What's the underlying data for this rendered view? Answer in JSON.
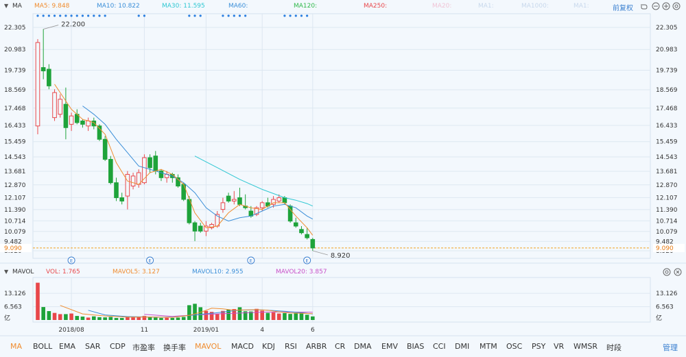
{
  "header": {
    "indicator": "MA",
    "ma_labels": [
      {
        "text": "MA5: 9.848",
        "color": "#f08c2e"
      },
      {
        "text": "MA10: 10.822",
        "color": "#3a8ed8"
      },
      {
        "text": "MA30: 11.595",
        "color": "#2ec7d2"
      },
      {
        "text": "MA60:",
        "color": "#3a8ed8"
      },
      {
        "text": "MA120:",
        "color": "#2fb84a"
      },
      {
        "text": "MA250:",
        "color": "#e8474a"
      },
      {
        "text": "MA20:",
        "color": "#f0c4d6"
      },
      {
        "text": "MA1:",
        "color": "#c8d8ec"
      },
      {
        "text": "MA1000:",
        "color": "#c8d8ec"
      },
      {
        "text": "MA1:",
        "color": "#c8d8ec"
      }
    ],
    "adjust_label": "前复权"
  },
  "vol_header": {
    "indicator": "MAVOL",
    "labels": [
      {
        "text": "VOL: 1.765",
        "color": "#e8474a"
      },
      {
        "text": "MAVOL5: 3.127",
        "color": "#f08c2e"
      },
      {
        "text": "MAVOL10: 2.955",
        "color": "#3a8ed8"
      },
      {
        "text": "MAVOL20: 3.857",
        "color": "#c84fc8"
      }
    ]
  },
  "tabs": [
    "MA",
    "BOLL",
    "EMA",
    "SAR",
    "CDP",
    "市盈率",
    "换手率",
    "MAVOL",
    "MACD",
    "KDJ",
    "RSI",
    "ARBR",
    "CR",
    "DMA",
    "EMV",
    "BIAS",
    "CCI",
    "DMI",
    "MTM",
    "OSC",
    "PSY",
    "VR",
    "WMSR",
    "时段"
  ],
  "active_tabs": [
    "MA",
    "MAVOL"
  ],
  "manage_label": "管理",
  "icons": [
    "undo-icon",
    "zoom-out-icon",
    "zoom-in-icon",
    "settings-icon",
    "close-icon"
  ],
  "colors": {
    "up": "#e8474a",
    "down": "#1ea33a",
    "current_price": "#f0a020",
    "ma5": "#f08c2e",
    "ma10": "#3a8ed8",
    "ma30": "#2ec7d2",
    "mavol20": "#c84fc8"
  },
  "chart_data": [
    {
      "type": "candlestick",
      "title": "MA",
      "y_ticks": [
        "22.305",
        "20.983",
        "19.739",
        "18.569",
        "17.468",
        "16.433",
        "15.459",
        "14.543",
        "13.681",
        "12.870",
        "12.107",
        "11.390",
        "10.714",
        "10.079",
        "9.482",
        "8.920"
      ],
      "ylim": [
        8.92,
        22.305
      ],
      "current_price": "9.090",
      "annotations": [
        {
          "text": "22.200",
          "type": "high"
        },
        {
          "text": "8.920",
          "type": "low"
        }
      ],
      "event_marker": "E",
      "event_indices": [
        6,
        20,
        38,
        48
      ],
      "candles": [
        {
          "o": 16.4,
          "h": 21.6,
          "l": 15.9,
          "c": 21.4
        },
        {
          "o": 19.9,
          "h": 22.2,
          "l": 19.2,
          "c": 19.7
        },
        {
          "o": 19.8,
          "h": 20.1,
          "l": 18.6,
          "c": 18.8
        },
        {
          "o": 16.9,
          "h": 18.6,
          "l": 16.7,
          "c": 18.4
        },
        {
          "o": 17.1,
          "h": 18.3,
          "l": 16.9,
          "c": 18.0
        },
        {
          "o": 17.7,
          "h": 18.7,
          "l": 15.6,
          "c": 16.3
        },
        {
          "o": 16.5,
          "h": 17.2,
          "l": 16.1,
          "c": 17.0
        },
        {
          "o": 17.1,
          "h": 17.4,
          "l": 16.5,
          "c": 16.6
        },
        {
          "o": 16.7,
          "h": 16.8,
          "l": 16.3,
          "c": 16.5
        },
        {
          "o": 16.4,
          "h": 16.9,
          "l": 16.1,
          "c": 16.7
        },
        {
          "o": 16.7,
          "h": 16.9,
          "l": 16.2,
          "c": 16.4
        },
        {
          "o": 16.4,
          "h": 16.5,
          "l": 15.5,
          "c": 15.6
        },
        {
          "o": 15.6,
          "h": 15.8,
          "l": 14.3,
          "c": 14.4
        },
        {
          "o": 14.4,
          "h": 14.6,
          "l": 12.9,
          "c": 13.0
        },
        {
          "o": 13.0,
          "h": 13.3,
          "l": 11.9,
          "c": 12.1
        },
        {
          "o": 12.1,
          "h": 12.4,
          "l": 11.7,
          "c": 11.9
        },
        {
          "o": 12.2,
          "h": 13.7,
          "l": 11.4,
          "c": 13.5
        },
        {
          "o": 12.8,
          "h": 13.6,
          "l": 12.6,
          "c": 13.4
        },
        {
          "o": 12.9,
          "h": 13.8,
          "l": 12.7,
          "c": 13.6
        },
        {
          "o": 13.0,
          "h": 14.7,
          "l": 12.9,
          "c": 14.5
        },
        {
          "o": 14.5,
          "h": 14.7,
          "l": 13.6,
          "c": 13.9
        },
        {
          "o": 14.6,
          "h": 14.9,
          "l": 13.5,
          "c": 13.7
        },
        {
          "o": 13.7,
          "h": 13.8,
          "l": 13.1,
          "c": 13.3
        },
        {
          "o": 13.3,
          "h": 13.7,
          "l": 13.0,
          "c": 13.5
        },
        {
          "o": 13.5,
          "h": 13.6,
          "l": 13.0,
          "c": 13.3
        },
        {
          "o": 13.3,
          "h": 13.5,
          "l": 12.7,
          "c": 12.8
        },
        {
          "o": 12.9,
          "h": 13.0,
          "l": 11.9,
          "c": 12.0
        },
        {
          "o": 12.0,
          "h": 12.2,
          "l": 10.5,
          "c": 10.6
        },
        {
          "o": 10.6,
          "h": 10.7,
          "l": 9.5,
          "c": 10.1
        },
        {
          "o": 10.4,
          "h": 10.6,
          "l": 10.0,
          "c": 10.1
        },
        {
          "o": 10.1,
          "h": 10.7,
          "l": 9.8,
          "c": 10.4
        },
        {
          "o": 10.3,
          "h": 10.6,
          "l": 10.2,
          "c": 10.5
        },
        {
          "o": 10.4,
          "h": 11.3,
          "l": 10.3,
          "c": 11.1
        },
        {
          "o": 11.4,
          "h": 12.1,
          "l": 11.2,
          "c": 11.8
        },
        {
          "o": 12.2,
          "h": 12.4,
          "l": 11.8,
          "c": 11.9
        },
        {
          "o": 11.9,
          "h": 12.5,
          "l": 11.7,
          "c": 12.0
        },
        {
          "o": 12.1,
          "h": 12.7,
          "l": 11.6,
          "c": 11.7
        },
        {
          "o": 11.6,
          "h": 12.3,
          "l": 11.4,
          "c": 11.5
        },
        {
          "o": 11.3,
          "h": 11.6,
          "l": 10.9,
          "c": 11.0
        },
        {
          "o": 11.1,
          "h": 11.6,
          "l": 11.0,
          "c": 11.5
        },
        {
          "o": 11.5,
          "h": 11.9,
          "l": 11.3,
          "c": 11.8
        },
        {
          "o": 11.8,
          "h": 12.1,
          "l": 11.5,
          "c": 11.6
        },
        {
          "o": 11.7,
          "h": 12.2,
          "l": 11.5,
          "c": 12.0
        },
        {
          "o": 11.9,
          "h": 12.3,
          "l": 11.8,
          "c": 12.1
        },
        {
          "o": 12.1,
          "h": 12.2,
          "l": 11.7,
          "c": 11.8
        },
        {
          "o": 11.6,
          "h": 11.7,
          "l": 10.6,
          "c": 10.7
        },
        {
          "o": 10.6,
          "h": 10.9,
          "l": 10.3,
          "c": 10.4
        },
        {
          "o": 10.2,
          "h": 10.4,
          "l": 9.9,
          "c": 10.0
        },
        {
          "o": 9.9,
          "h": 10.3,
          "l": 9.6,
          "c": 9.7
        },
        {
          "o": 9.6,
          "h": 9.7,
          "l": 8.92,
          "c": 9.09
        }
      ],
      "ma5": [
        [
          3,
          18.9
        ],
        [
          4,
          18.4
        ],
        [
          6,
          17.4
        ],
        [
          8,
          16.8
        ],
        [
          10,
          16.6
        ],
        [
          12,
          15.9
        ],
        [
          14,
          14.2
        ],
        [
          16,
          13.1
        ],
        [
          18,
          12.9
        ],
        [
          20,
          13.6
        ],
        [
          22,
          13.8
        ],
        [
          24,
          13.5
        ],
        [
          26,
          12.9
        ],
        [
          28,
          11.2
        ],
        [
          30,
          10.3
        ],
        [
          32,
          10.4
        ],
        [
          34,
          11.2
        ],
        [
          36,
          11.7
        ],
        [
          38,
          11.5
        ],
        [
          40,
          11.4
        ],
        [
          42,
          11.8
        ],
        [
          44,
          11.8
        ],
        [
          46,
          11.0
        ],
        [
          48,
          10.3
        ],
        [
          49,
          9.85
        ]
      ],
      "ma10": [
        [
          8,
          17.6
        ],
        [
          10,
          17.1
        ],
        [
          12,
          16.5
        ],
        [
          14,
          15.6
        ],
        [
          16,
          14.8
        ],
        [
          18,
          14.0
        ],
        [
          20,
          13.8
        ],
        [
          22,
          13.6
        ],
        [
          24,
          13.4
        ],
        [
          26,
          13.0
        ],
        [
          28,
          12.4
        ],
        [
          30,
          11.5
        ],
        [
          32,
          11.0
        ],
        [
          34,
          10.7
        ],
        [
          36,
          10.9
        ],
        [
          38,
          11.0
        ],
        [
          40,
          11.3
        ],
        [
          42,
          11.6
        ],
        [
          44,
          11.7
        ],
        [
          46,
          11.5
        ],
        [
          48,
          11.0
        ],
        [
          49,
          10.82
        ]
      ],
      "ma30": [
        [
          28,
          14.6
        ],
        [
          32,
          13.9
        ],
        [
          36,
          13.2
        ],
        [
          40,
          12.6
        ],
        [
          44,
          12.1
        ],
        [
          46,
          11.95
        ],
        [
          48,
          11.75
        ],
        [
          49,
          11.6
        ]
      ],
      "x_labels": [
        {
          "i": 6,
          "text": "2018/08"
        },
        {
          "i": 19,
          "text": "11"
        },
        {
          "i": 30,
          "text": "2019/01"
        },
        {
          "i": 40,
          "text": "4"
        },
        {
          "i": 49,
          "text": "6"
        }
      ]
    },
    {
      "type": "bar",
      "title": "MAVOL",
      "y_ticks": [
        "13.126",
        "6.563",
        "亿"
      ],
      "ylim": [
        0,
        13.126
      ],
      "volumes": [
        18.4,
        6.4,
        4.4,
        3.5,
        2.9,
        2.9,
        3.2,
        2.0,
        1.7,
        1.2,
        1.8,
        1.4,
        1.3,
        1.5,
        1.0,
        1.0,
        1.8,
        1.3,
        1.4,
        2.0,
        1.5,
        1.2,
        1.0,
        1.1,
        1.0,
        1.2,
        1.5,
        7.3,
        8.0,
        6.3,
        4.5,
        4.0,
        3.0,
        4.5,
        5.1,
        5.4,
        6.3,
        4.3,
        4.2,
        5.5,
        4.6,
        3.5,
        3.7,
        3.2,
        3.4,
        3.0,
        3.6,
        3.6,
        2.6,
        1.765
      ],
      "mavol5": [
        [
          4,
          7.2
        ],
        [
          8,
          3.0
        ],
        [
          12,
          2.0
        ],
        [
          16,
          1.4
        ],
        [
          20,
          1.5
        ],
        [
          24,
          1.3
        ],
        [
          27,
          2.3
        ],
        [
          29,
          3.8
        ],
        [
          31,
          5.8
        ],
        [
          33,
          5.5
        ],
        [
          35,
          4.8
        ],
        [
          37,
          5.0
        ],
        [
          39,
          5.1
        ],
        [
          41,
          4.8
        ],
        [
          43,
          4.0
        ],
        [
          45,
          3.5
        ],
        [
          47,
          3.3
        ],
        [
          49,
          3.13
        ]
      ],
      "mavol10": [
        [
          9,
          4.8
        ],
        [
          12,
          2.5
        ],
        [
          16,
          1.7
        ],
        [
          20,
          1.5
        ],
        [
          24,
          1.4
        ],
        [
          28,
          2.5
        ],
        [
          32,
          3.6
        ],
        [
          36,
          4.9
        ],
        [
          40,
          5.0
        ],
        [
          44,
          4.3
        ],
        [
          47,
          3.6
        ],
        [
          49,
          2.96
        ]
      ],
      "mavol20": [
        [
          19,
          2.8
        ],
        [
          24,
          1.8
        ],
        [
          28,
          2.5
        ],
        [
          32,
          3.0
        ],
        [
          36,
          3.4
        ],
        [
          40,
          3.9
        ],
        [
          44,
          4.0
        ],
        [
          47,
          3.9
        ],
        [
          49,
          3.86
        ]
      ]
    }
  ]
}
